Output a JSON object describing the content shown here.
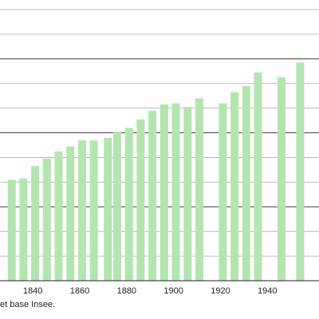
{
  "caption": "et base Insee.",
  "chart_data": {
    "type": "bar",
    "x": [
      1831,
      1836,
      1841,
      1846,
      1851,
      1856,
      1861,
      1866,
      1872,
      1876,
      1881,
      1886,
      1891,
      1896,
      1901,
      1906,
      1911,
      1921,
      1926,
      1931,
      1936,
      1946,
      1954
    ],
    "values": [
      8.2,
      8.3,
      9.3,
      9.9,
      10.5,
      10.9,
      11.4,
      11.4,
      11.6,
      12.1,
      12.4,
      13.1,
      13.8,
      14.3,
      14.4,
      14.1,
      14.8,
      14.4,
      15.3,
      15.8,
      16.9,
      16.5,
      17.7
    ],
    "xticks": [
      "1840",
      "1860",
      "1880",
      "1900",
      "1920",
      "1940"
    ],
    "xlim": [
      1826,
      1962
    ],
    "ylim": [
      0,
      22
    ],
    "gridlines": [
      2,
      4,
      6,
      8,
      10,
      12,
      14,
      16,
      18,
      20,
      22
    ],
    "majorGridlines": [
      6,
      12,
      18,
      24
    ],
    "grid": true,
    "colors": {
      "bar": "#b4e5b1",
      "grid": "#aaaaaa",
      "majorGrid": "#333333",
      "axis": "#222222"
    }
  }
}
